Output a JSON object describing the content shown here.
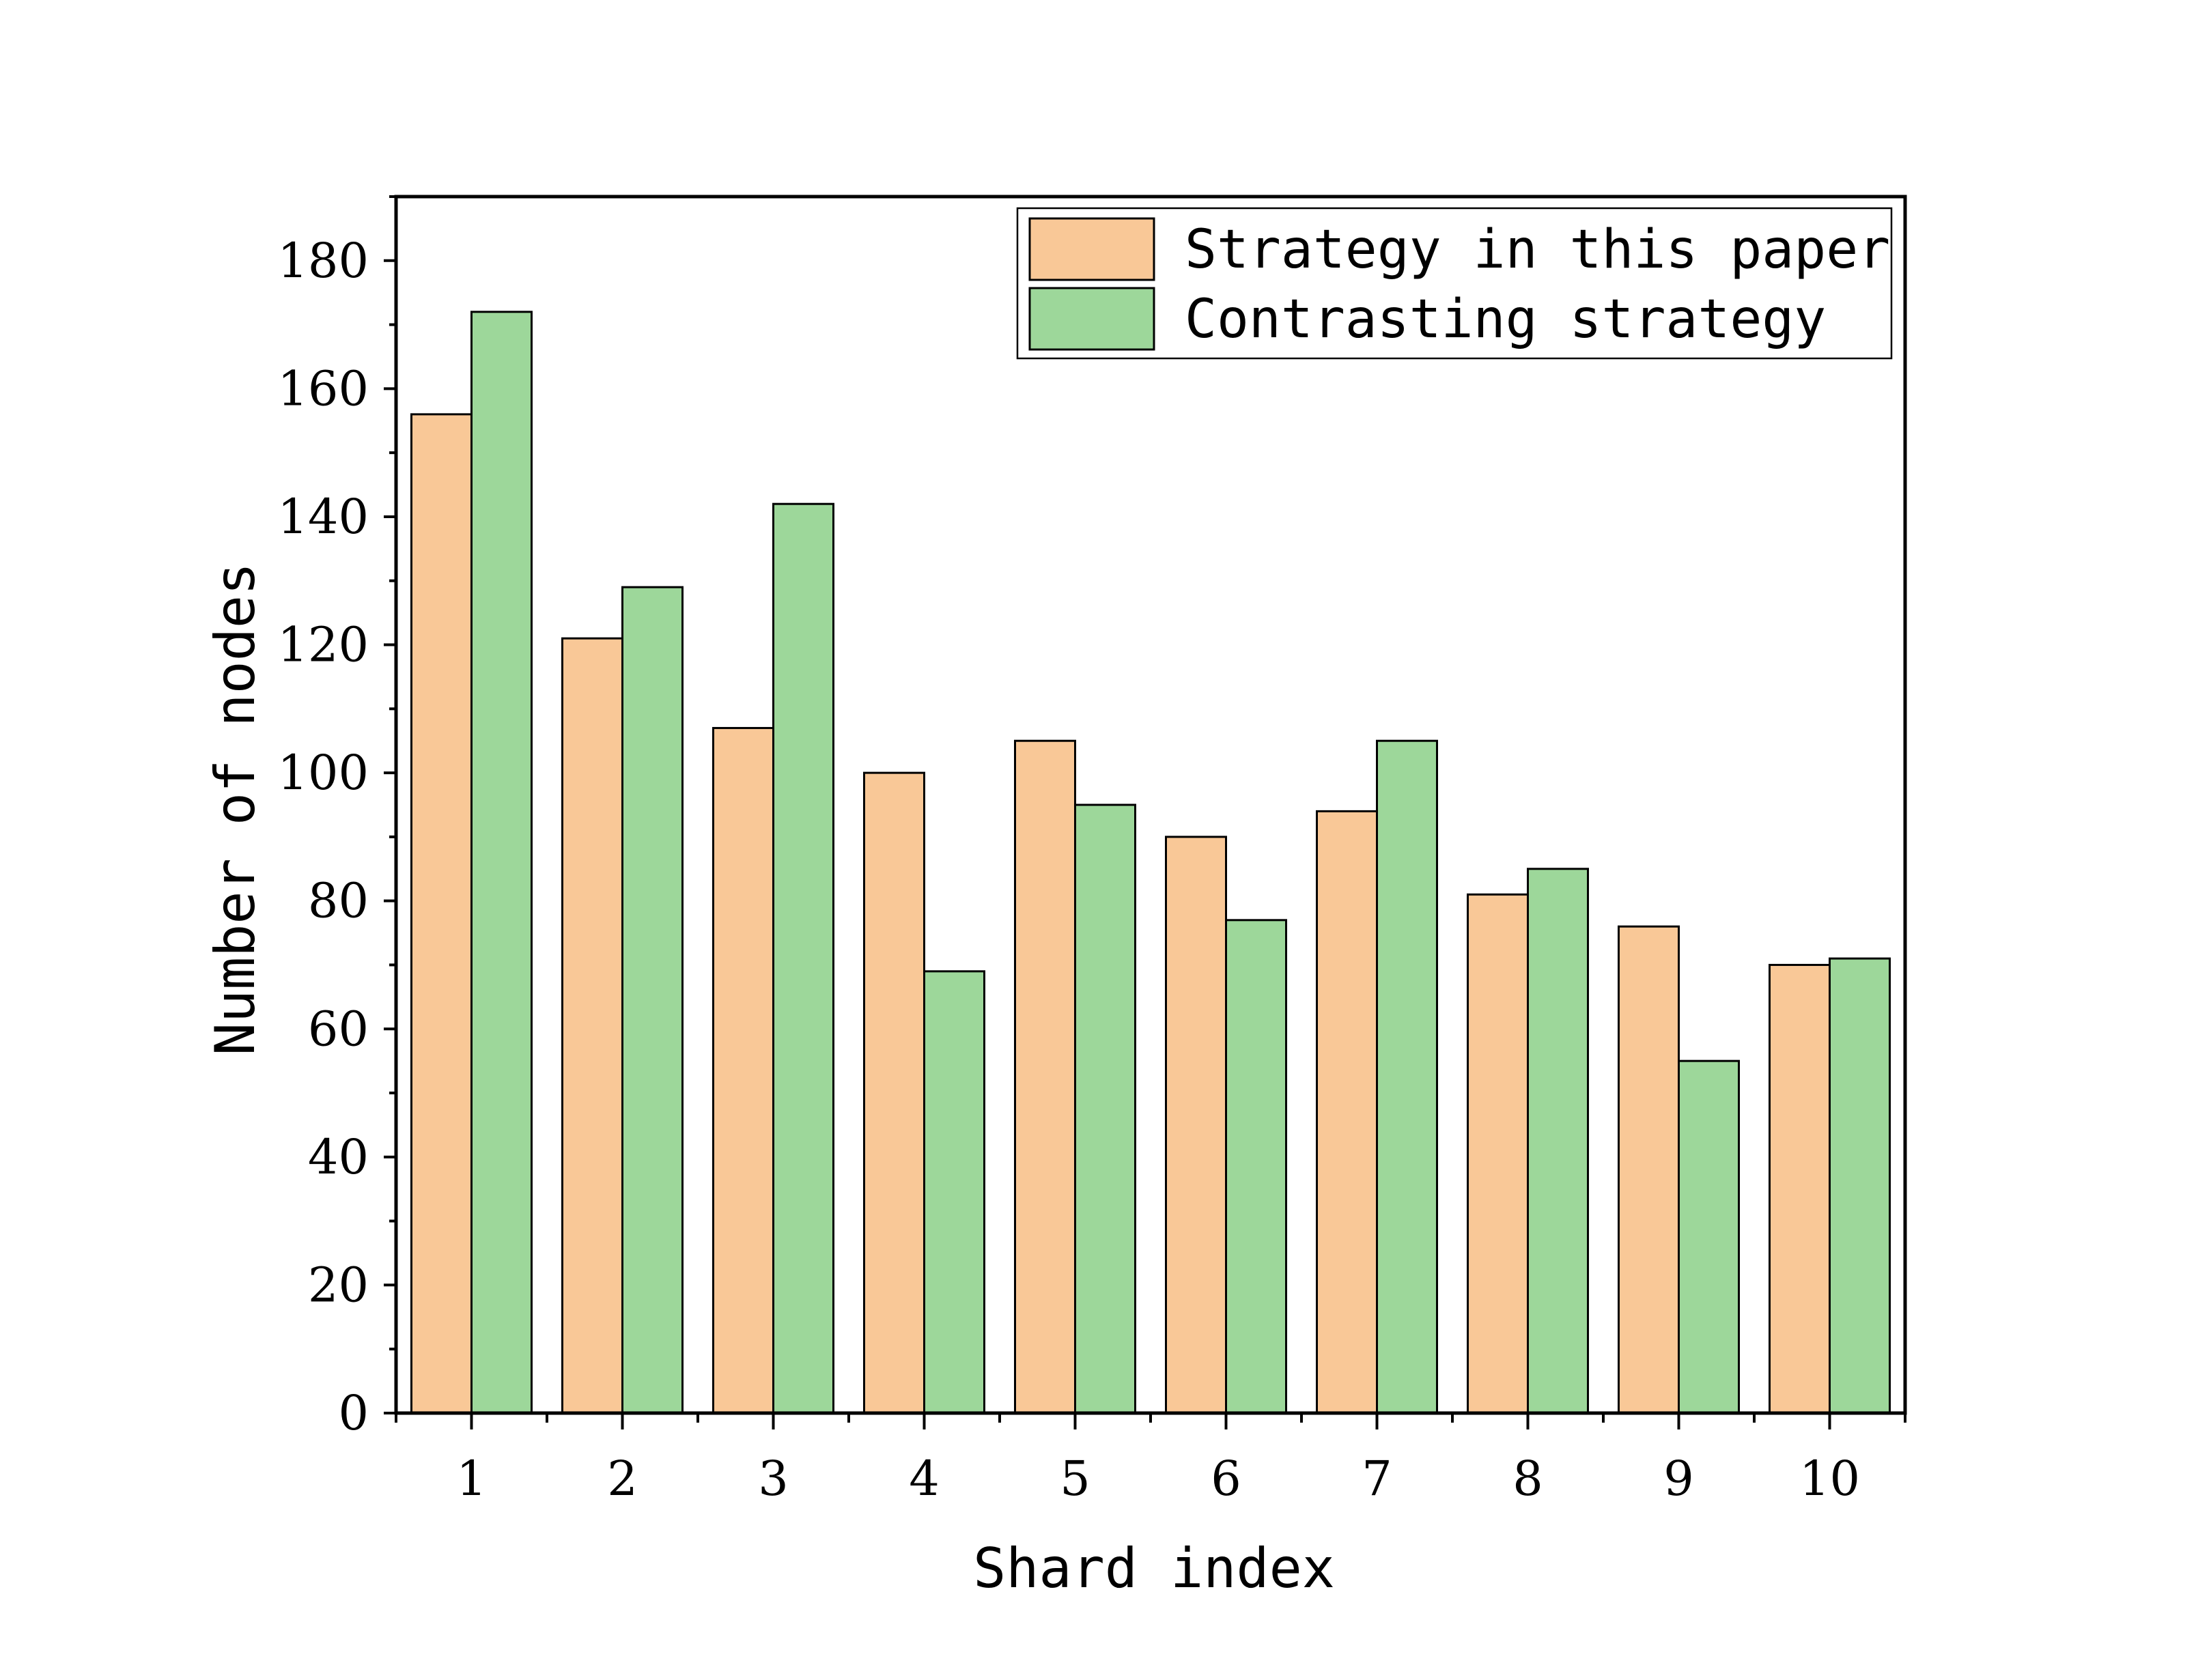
{
  "chart_data": {
    "type": "bar",
    "title": "",
    "xlabel": "Shard index",
    "ylabel": "Number of nodes",
    "categories": [
      "1",
      "2",
      "3",
      "4",
      "5",
      "6",
      "7",
      "8",
      "9",
      "10"
    ],
    "series": [
      {
        "name": "Strategy in this paper",
        "color": "#f9c897",
        "values": [
          156,
          121,
          107,
          100,
          105,
          90,
          94,
          81,
          76,
          70
        ]
      },
      {
        "name": "Contrasting strategy",
        "color": "#9dd79a",
        "values": [
          172,
          129,
          142,
          69,
          95,
          77,
          105,
          85,
          55,
          71
        ]
      }
    ],
    "ylim": [
      0,
      190
    ],
    "yticks": [
      0,
      20,
      40,
      60,
      80,
      100,
      120,
      140,
      160,
      180
    ],
    "legend_position": "top-right",
    "grid": false
  }
}
